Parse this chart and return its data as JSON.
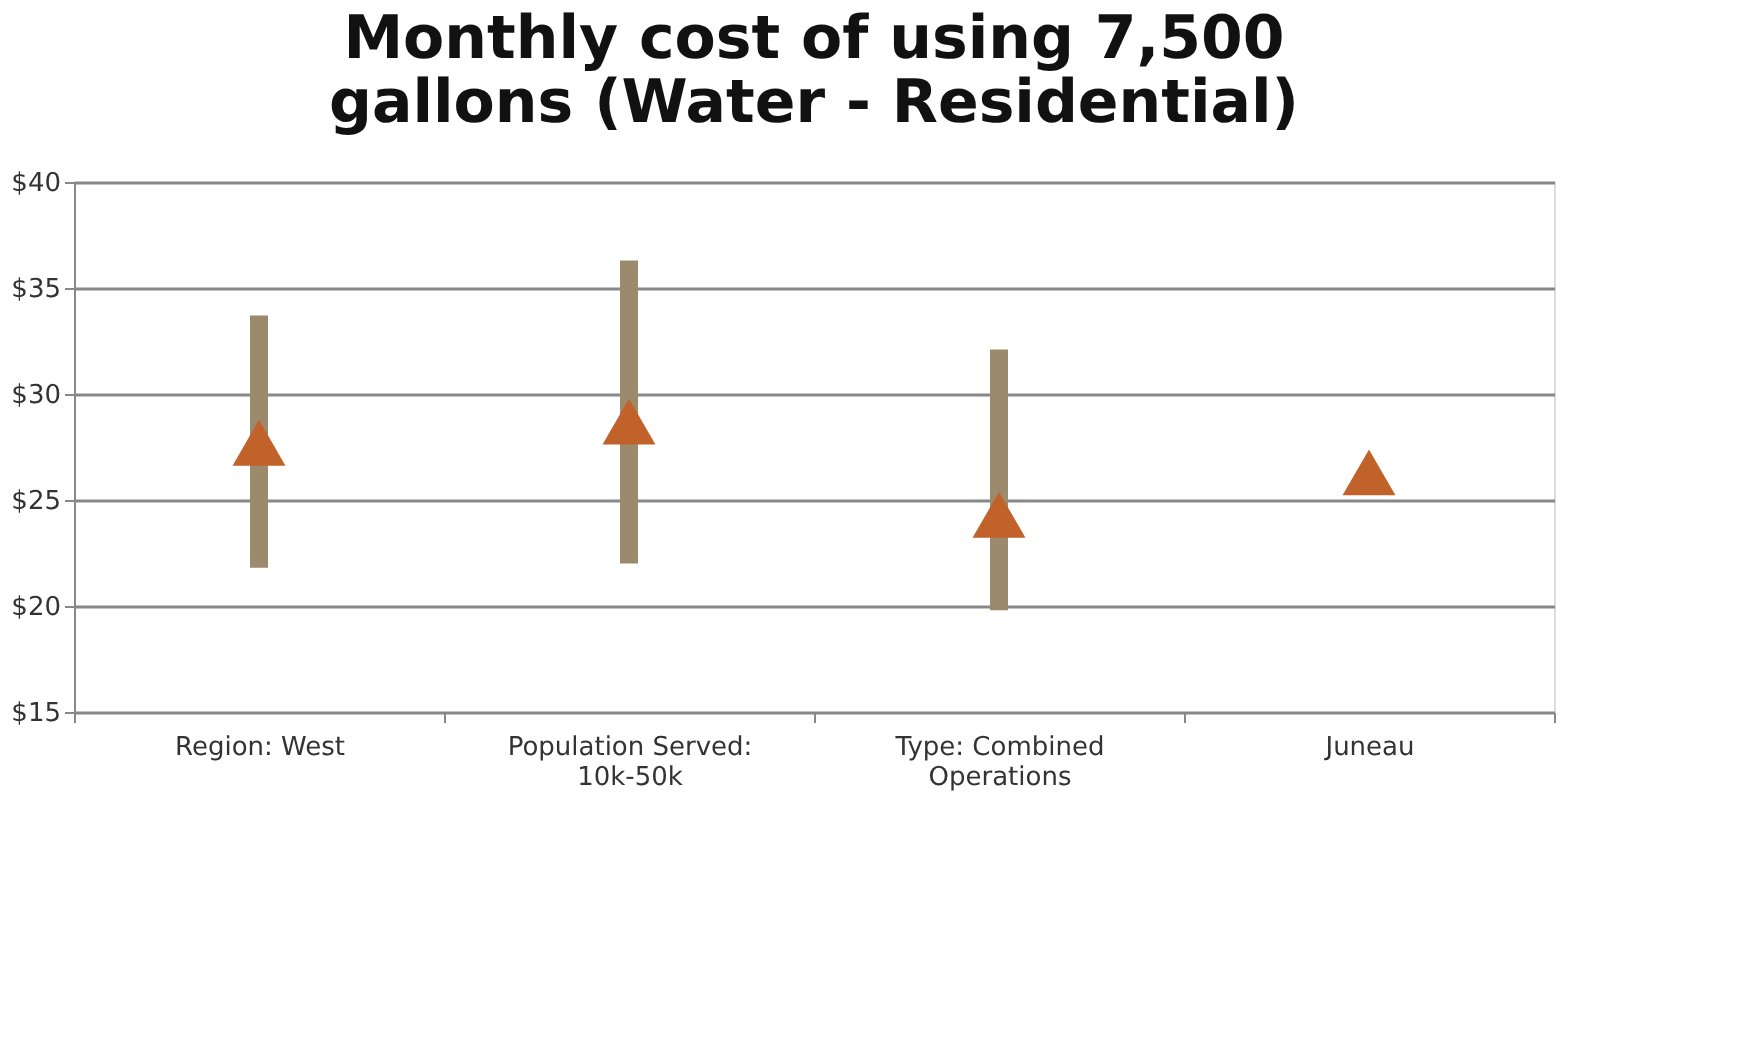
{
  "chart_data": {
    "type": "scatter",
    "title": [
      "Monthly cost of using 7,500",
      "gallons (Water - Residential)"
    ],
    "categories": [
      "Region: West",
      "Population Served: 10k-50k",
      "Type: Combined Operations",
      "Juneau"
    ],
    "values": [
      27.7,
      28.7,
      24.3,
      26.3
    ],
    "errors": [
      [
        21.8,
        33.7
      ],
      [
        22.0,
        36.3
      ],
      [
        19.8,
        32.1
      ],
      null
    ],
    "color": "#c0622a",
    "marker": "triangle",
    "ylim": [
      15,
      40
    ],
    "yticks": [
      {
        "value": 15,
        "label": "$15"
      },
      {
        "value": 20,
        "label": "$20"
      },
      {
        "value": 25,
        "label": "$25"
      },
      {
        "value": 30,
        "label": "$30"
      },
      {
        "value": 35,
        "label": "$35"
      },
      {
        "value": 40,
        "label": "$40"
      }
    ],
    "grid": "y"
  }
}
